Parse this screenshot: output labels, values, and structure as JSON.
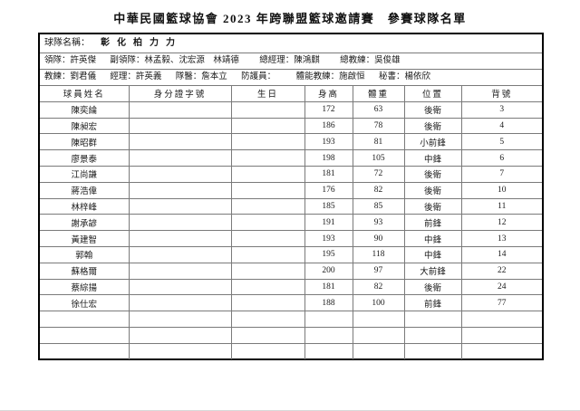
{
  "title": "中華民國籃球協會 2023 年跨聯盟籃球邀請賽　參賽球隊名單",
  "team": {
    "label": "球隊名稱：",
    "name": "彰化柏力力"
  },
  "staff_row1": [
    "領隊：許英傑",
    "副領隊：林孟毅、沈宏源　林靖德",
    "總經理：陳鴻麒",
    "總教練：吳俊雄"
  ],
  "staff_row2": [
    "教練：劉君儀",
    "經理：許英義",
    "隊醫：詹本立",
    "防護員：",
    "體能教練：施啟恒",
    "秘書：楊依欣"
  ],
  "table": {
    "headers": [
      "球員姓名",
      "身分證字號",
      "生日",
      "身高",
      "體重",
      "位置",
      "背號"
    ],
    "players": [
      {
        "name": "陳奕綸",
        "id": "",
        "birthday": "",
        "height": "172",
        "weight": "63",
        "position": "後衛",
        "number": "3"
      },
      {
        "name": "陳昶宏",
        "id": "",
        "birthday": "",
        "height": "186",
        "weight": "78",
        "position": "後衛",
        "number": "4"
      },
      {
        "name": "陳昭群",
        "id": "",
        "birthday": "",
        "height": "193",
        "weight": "81",
        "position": "小前鋒",
        "number": "5"
      },
      {
        "name": "廖景泰",
        "id": "",
        "birthday": "",
        "height": "198",
        "weight": "105",
        "position": "中鋒",
        "number": "6"
      },
      {
        "name": "江尚謙",
        "id": "",
        "birthday": "",
        "height": "181",
        "weight": "72",
        "position": "後衛",
        "number": "7"
      },
      {
        "name": "蔣浩偉",
        "id": "",
        "birthday": "",
        "height": "176",
        "weight": "82",
        "position": "後衛",
        "number": "10"
      },
      {
        "name": "林梓峰",
        "id": "",
        "birthday": "",
        "height": "185",
        "weight": "85",
        "position": "後衛",
        "number": "11"
      },
      {
        "name": "謝承諺",
        "id": "",
        "birthday": "",
        "height": "191",
        "weight": "93",
        "position": "前鋒",
        "number": "12"
      },
      {
        "name": "黃建智",
        "id": "",
        "birthday": "",
        "height": "193",
        "weight": "90",
        "position": "中鋒",
        "number": "13"
      },
      {
        "name": "郭翰",
        "id": "",
        "birthday": "",
        "height": "195",
        "weight": "118",
        "position": "中鋒",
        "number": "14"
      },
      {
        "name": "蘇格爾",
        "id": "",
        "birthday": "",
        "height": "200",
        "weight": "97",
        "position": "大前鋒",
        "number": "22"
      },
      {
        "name": "蔡綜揚",
        "id": "",
        "birthday": "",
        "height": "181",
        "weight": "82",
        "position": "後衛",
        "number": "24"
      },
      {
        "name": "徐仕宏",
        "id": "",
        "birthday": "",
        "height": "188",
        "weight": "100",
        "position": "前鋒",
        "number": "77"
      }
    ],
    "empty_row_count": 3
  }
}
